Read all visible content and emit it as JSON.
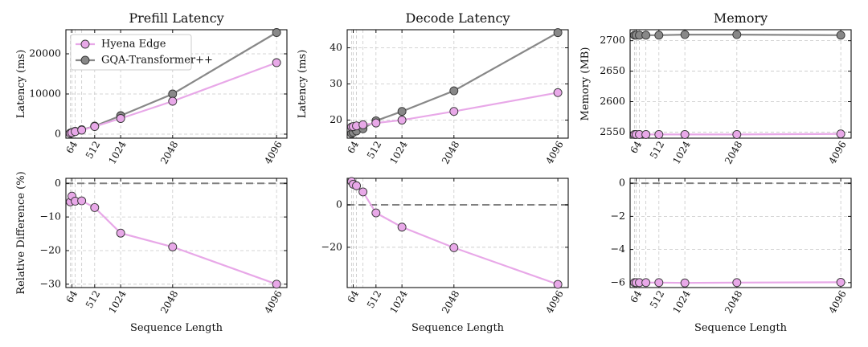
{
  "colors": {
    "hyena": "#e8a8e8",
    "gqa": "#888888",
    "grid": "#c8c8c8",
    "reference": "#808080"
  },
  "legend": {
    "placement": "upper-left",
    "entries": [
      "Hyena Edge",
      "GQA-Transformer++"
    ]
  },
  "chart_data": [
    {
      "type": "line",
      "title": "Prefill Latency",
      "xlabel": "",
      "ylabel": "Latency (ms)",
      "x_ticks": [
        64,
        512,
        1024,
        2048,
        4096
      ],
      "y_ticks": [
        0,
        10000,
        20000
      ],
      "ylim": [
        -1000,
        26000
      ],
      "grid": true,
      "x": [
        32,
        64,
        128,
        256,
        512,
        1024,
        2048,
        4096
      ],
      "series": [
        {
          "name": "Hyena Edge",
          "color_key": "hyena",
          "values": [
            200,
            350,
            650,
            1000,
            1900,
            3900,
            8200,
            17800
          ]
        },
        {
          "name": "GQA-Transformer++",
          "color_key": "gqa",
          "values": [
            250,
            400,
            700,
            1100,
            2000,
            4600,
            10000,
            25300
          ]
        }
      ]
    },
    {
      "type": "line",
      "title": "Decode Latency",
      "xlabel": "",
      "ylabel": "Latency (ms)",
      "x_ticks": [
        64,
        512,
        1024,
        2048,
        4096
      ],
      "y_ticks": [
        20,
        30,
        40
      ],
      "ylim": [
        15,
        45
      ],
      "grid": true,
      "x": [
        32,
        64,
        128,
        256,
        512,
        1024,
        2048,
        4096
      ],
      "series": [
        {
          "name": "Hyena Edge",
          "color_key": "hyena",
          "values": [
            18.1,
            18.2,
            18.4,
            18.7,
            19.2,
            20.0,
            22.4,
            27.6
          ]
        },
        {
          "name": "GQA-Transformer++",
          "color_key": "gqa",
          "values": [
            16.3,
            16.6,
            17.0,
            17.6,
            19.8,
            22.4,
            28.1,
            44.2
          ]
        }
      ]
    },
    {
      "type": "line",
      "title": "Memory",
      "xlabel": "",
      "ylabel": "Memory (MB)",
      "x_ticks": [
        64,
        512,
        1024,
        2048,
        4096
      ],
      "y_ticks": [
        2550,
        2600,
        2650,
        2700
      ],
      "ylim": [
        2540,
        2718
      ],
      "grid": true,
      "x": [
        32,
        64,
        128,
        256,
        512,
        1024,
        2048,
        4096
      ],
      "series": [
        {
          "name": "Hyena Edge",
          "color_key": "hyena",
          "values": [
            2546,
            2546,
            2546,
            2546,
            2546,
            2546,
            2546,
            2547
          ]
        },
        {
          "name": "GQA-Transformer++",
          "color_key": "gqa",
          "values": [
            2709,
            2709,
            2709,
            2709,
            2709,
            2710,
            2710,
            2709
          ]
        }
      ]
    },
    {
      "type": "line",
      "title": "",
      "xlabel": "Sequence Length",
      "ylabel": "Relative Difference (%)",
      "x_ticks": [
        64,
        512,
        1024,
        2048,
        4096
      ],
      "y_ticks": [
        0,
        -10,
        -20,
        -30
      ],
      "ylim": [
        -31,
        1.5
      ],
      "grid": true,
      "reference_line": 0,
      "x": [
        32,
        64,
        128,
        256,
        512,
        1024,
        2048,
        4096
      ],
      "series": [
        {
          "name": "Hyena Edge",
          "color_key": "hyena",
          "values": [
            -5.5,
            -3.8,
            -5.3,
            -5.2,
            -7.2,
            -14.8,
            -18.9,
            -30.0
          ]
        }
      ]
    },
    {
      "type": "line",
      "title": "",
      "xlabel": "Sequence Length",
      "ylabel": "",
      "x_ticks": [
        64,
        512,
        1024,
        2048,
        4096
      ],
      "y_ticks": [
        0,
        -20
      ],
      "ylim": [
        -39,
        12.5
      ],
      "grid": true,
      "reference_line": 0,
      "x": [
        32,
        64,
        128,
        256,
        512,
        1024,
        2048,
        4096
      ],
      "series": [
        {
          "name": "Hyena Edge",
          "color_key": "hyena",
          "values": [
            11.0,
            9.7,
            9.0,
            6.1,
            -3.8,
            -10.5,
            -20.2,
            -37.5
          ]
        }
      ]
    },
    {
      "type": "line",
      "title": "",
      "xlabel": "Sequence Length",
      "ylabel": "",
      "x_ticks": [
        64,
        512,
        1024,
        2048,
        4096
      ],
      "y_ticks": [
        0,
        -2,
        -4,
        -6
      ],
      "ylim": [
        -6.3,
        0.3
      ],
      "grid": true,
      "reference_line": 0,
      "x": [
        32,
        64,
        128,
        256,
        512,
        1024,
        2048,
        4096
      ],
      "series": [
        {
          "name": "Hyena Edge",
          "color_key": "hyena",
          "values": [
            -6.0,
            -6.0,
            -6.0,
            -6.0,
            -6.0,
            -6.02,
            -6.0,
            -5.98
          ]
        }
      ]
    }
  ]
}
